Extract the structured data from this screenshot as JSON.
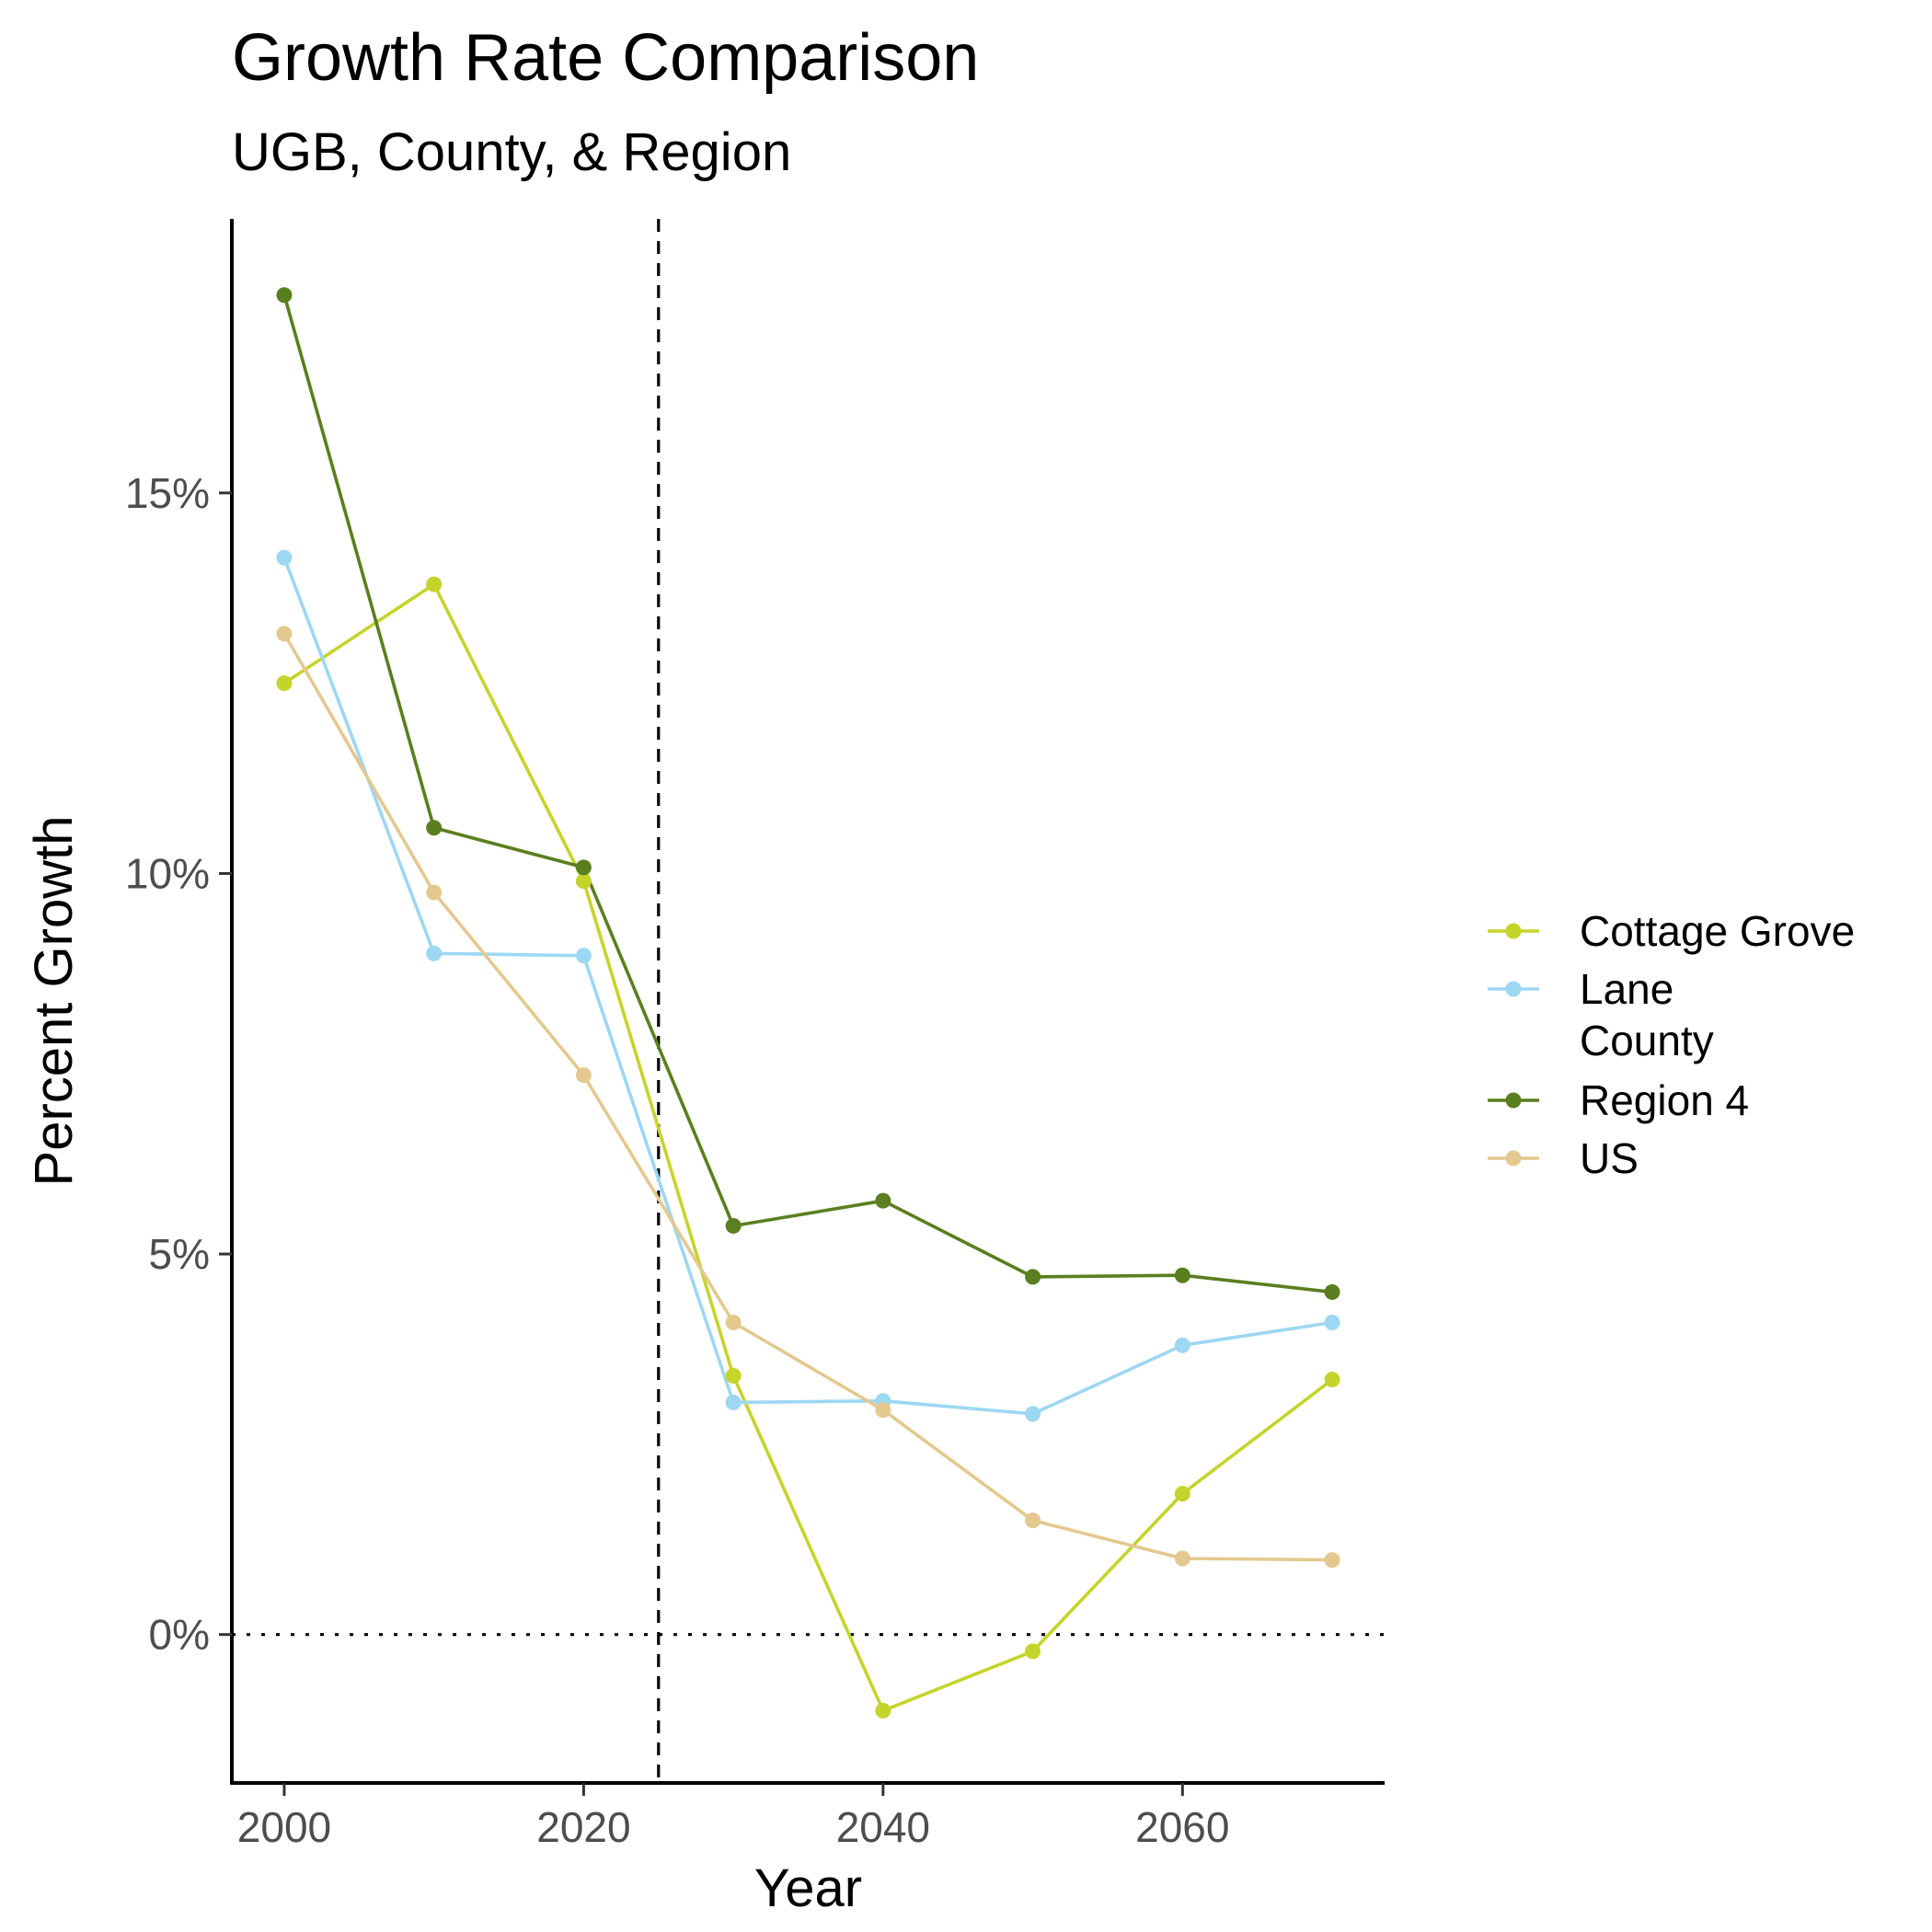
{
  "chart_data": {
    "type": "line",
    "title": "Growth Rate Comparison",
    "subtitle": "UGB, County, & Region",
    "xlabel": "Year",
    "ylabel": "Percent Growth",
    "x": [
      2000,
      2010,
      2020,
      2030,
      2040,
      2050,
      2060,
      2070
    ],
    "xlim": [
      1996.5,
      2073.5
    ],
    "ylim": [
      -1.95,
      18.6
    ],
    "x_ticks": [
      2000,
      2020,
      2040,
      2060
    ],
    "x_tick_labels": [
      "2000",
      "2020",
      "2040",
      "2060"
    ],
    "y_ticks": [
      0,
      5,
      10,
      15
    ],
    "y_tick_labels": [
      "0%",
      "5%",
      "10%",
      "15%"
    ],
    "reference_lines": [
      {
        "orientation": "vertical",
        "value": 2025,
        "style": "dashed"
      },
      {
        "orientation": "horizontal",
        "value": 0,
        "style": "dotted"
      }
    ],
    "grid": false,
    "legend_position": "right",
    "series": [
      {
        "name": "Cottage Grove",
        "color": "#c5d42a",
        "values": [
          12.5,
          13.8,
          9.9,
          3.4,
          -1.0,
          -0.22,
          1.85,
          3.35
        ]
      },
      {
        "name": "Lane County",
        "legend_lines": [
          "Lane",
          "County"
        ],
        "color": "#9dd7f2",
        "values": [
          14.15,
          8.95,
          8.92,
          3.05,
          3.07,
          2.9,
          3.8,
          4.1
        ]
      },
      {
        "name": "Region 4",
        "color": "#5a7f1f",
        "values": [
          17.6,
          10.6,
          10.08,
          5.37,
          5.7,
          4.7,
          4.72,
          4.5
        ]
      },
      {
        "name": "US",
        "color": "#e3c98f",
        "values": [
          13.15,
          9.75,
          7.35,
          4.1,
          2.95,
          1.5,
          1.0,
          0.98
        ]
      }
    ]
  }
}
